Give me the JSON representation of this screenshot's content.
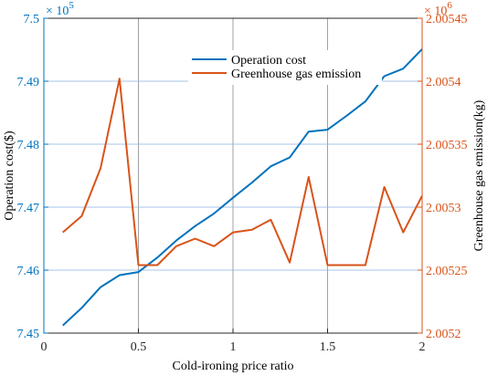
{
  "chart_data": {
    "type": "line",
    "xlabel": "Cold-ironing price ratio",
    "xlim": [
      0,
      2
    ],
    "xticks": [
      "0",
      "0.5",
      "1",
      "1.5",
      "2"
    ],
    "y_left": {
      "label": "Operation cost($)",
      "lim": [
        7.45,
        7.5
      ],
      "ticks": [
        "7.45",
        "7.46",
        "7.47",
        "7.48",
        "7.49",
        "7.5"
      ],
      "exponent_base": "× 10",
      "exponent_power": "5",
      "color": "#0072bd"
    },
    "y_right": {
      "label": "Greenhouse gas emission(kg)",
      "lim": [
        2.0052,
        2.00545
      ],
      "ticks": [
        "2.0052",
        "2.00525",
        "2.0053",
        "2.00535",
        "2.0054",
        "2.00545"
      ],
      "exponent_base": "× 10",
      "exponent_power": "6",
      "color": "#d95319"
    },
    "grid": true,
    "legend_position": "top-right",
    "series": [
      {
        "name": "Operation cost",
        "axis": "left",
        "color": "#0072bd",
        "x": [
          0.1,
          0.2,
          0.3,
          0.4,
          0.5,
          0.6,
          0.7,
          0.8,
          0.9,
          1.0,
          1.1,
          1.2,
          1.3,
          1.4,
          1.5,
          1.6,
          1.7,
          1.8,
          1.9,
          2.0
        ],
        "y": [
          7.4512,
          7.454,
          7.4573,
          7.4592,
          7.4597,
          7.462,
          7.4647,
          7.467,
          7.469,
          7.4715,
          7.4739,
          7.4765,
          7.4779,
          7.482,
          7.4823,
          7.4845,
          7.4868,
          7.4908,
          7.492,
          7.4951
        ]
      },
      {
        "name": "Greenhouse gas emission",
        "axis": "right",
        "color": "#d95319",
        "x": [
          0.1,
          0.2,
          0.3,
          0.4,
          0.5,
          0.6,
          0.7,
          0.8,
          0.9,
          1.0,
          1.1,
          1.2,
          1.3,
          1.4,
          1.5,
          1.6,
          1.7,
          1.8,
          1.9,
          2.0
        ],
        "y": [
          2.00528,
          2.005293,
          2.005331,
          2.005402,
          2.005254,
          2.005254,
          2.005269,
          2.005275,
          2.005269,
          2.00528,
          2.005282,
          2.00529,
          2.005256,
          2.005324,
          2.005254,
          2.005254,
          2.005254,
          2.005316,
          2.00528,
          2.005309
        ]
      }
    ]
  }
}
